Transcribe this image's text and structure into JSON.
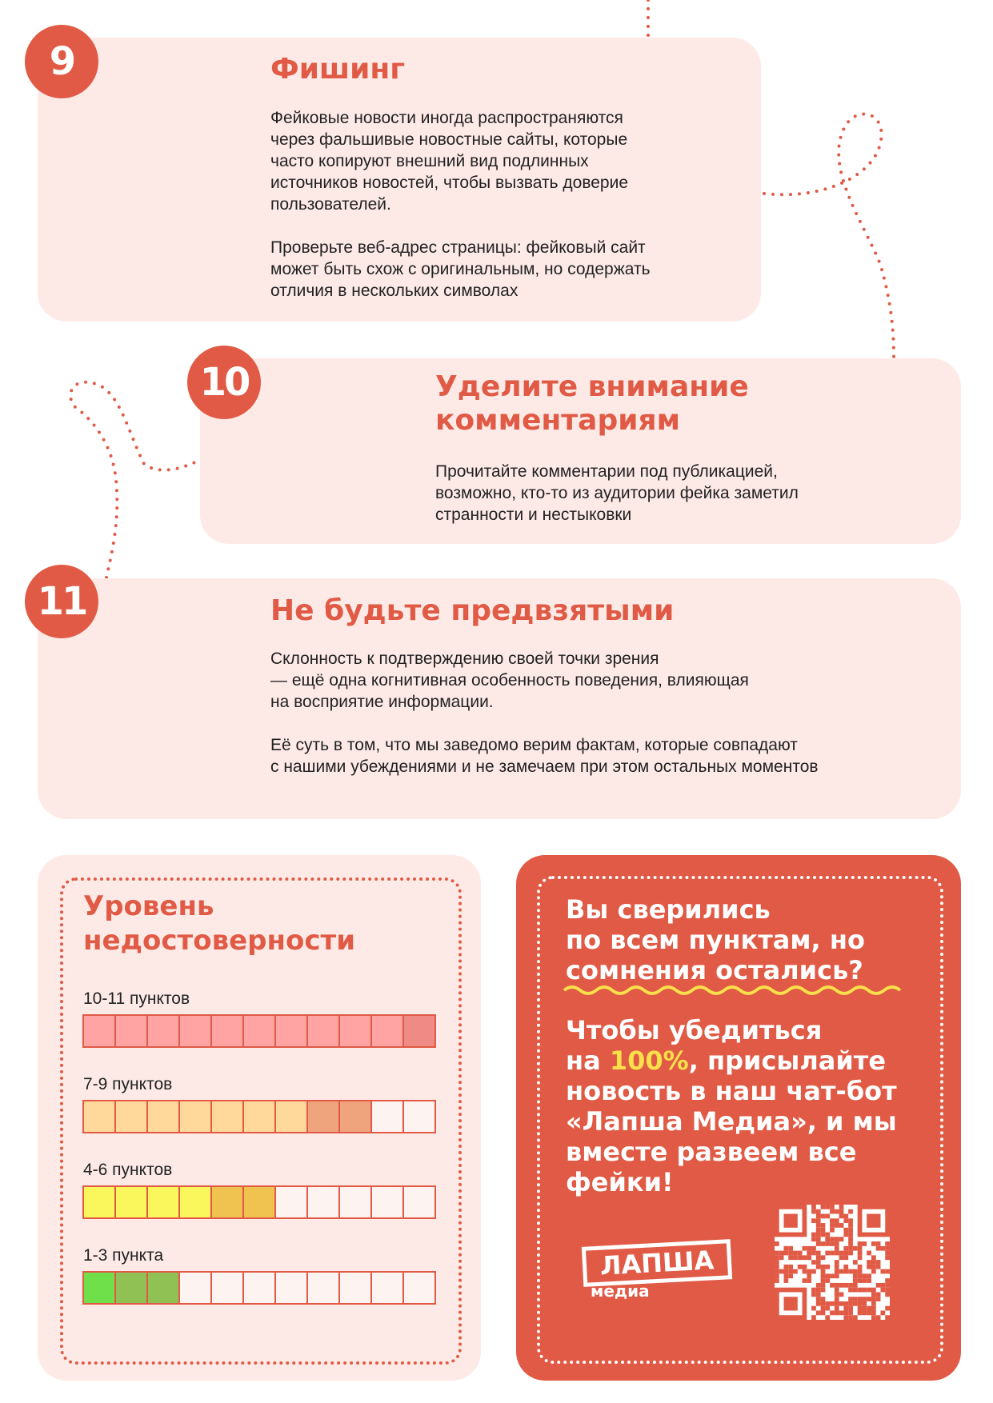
{
  "cards": [
    {
      "number": "9",
      "title": "Фишинг",
      "paragraphs": [
        [
          "Фейковые новости иногда распространяются",
          "через фальшивые новостные сайты, которые",
          "часто копируют внешний вид подлинных",
          "источников новостей, чтобы вызвать доверие",
          "пользователей."
        ],
        [
          "Проверьте веб-адрес страницы: фейковый сайт",
          "может быть схож с оригинальным, но содержать",
          "отличия в нескольких символах"
        ]
      ]
    },
    {
      "number": "10",
      "title": "Уделите внимание комментариям",
      "paragraphs": [
        [
          "Прочитайте комментарии под публикацией,",
          "возможно, кто-то из аудитории фейка заметил",
          "странности и нестыковки"
        ]
      ]
    },
    {
      "number": "11",
      "title": "Не будьте предвзятыми",
      "paragraphs": [
        [
          "Склонность к подтверждению своей точки зрения",
          "— ещё одна когнитивная особенность поведения, влияющая",
          "на восприятие информации."
        ],
        [
          "Её суть в том, что мы заведомо верим фактам, которые совпадают",
          "с нашими убеждениями и не замечаем при этом остальных моментов"
        ]
      ]
    }
  ],
  "level": {
    "title": [
      "Уровень",
      "недостоверности"
    ],
    "rows": [
      {
        "label": "10-11 пунктов",
        "cells": [
          "#ffa3a3",
          "#ffa3a3",
          "#ffa3a3",
          "#ffa3a3",
          "#ffa3a3",
          "#ffa3a3",
          "#ffa3a3",
          "#ffa3a3",
          "#ffa3a3",
          "#ffa3a3",
          "#f08a84"
        ]
      },
      {
        "label": "7-9 пунктов",
        "cells": [
          "#ffd99c",
          "#ffd99c",
          "#ffd99c",
          "#ffd99c",
          "#ffd99c",
          "#ffd99c",
          "#ffd99c",
          "#f0a47e",
          "#f0a47e",
          null,
          null
        ]
      },
      {
        "label": "4-6 пунктов",
        "cells": [
          "#f9f75c",
          "#f9f75c",
          "#f9f75c",
          "#f9f75c",
          "#f0c24f",
          "#f0c24f",
          null,
          null,
          null,
          null,
          null
        ]
      },
      {
        "label": "1-3 пункта",
        "cells": [
          "#6fe04a",
          "#8fc155",
          "#8fc155",
          null,
          null,
          null,
          null,
          null,
          null,
          null,
          null
        ]
      }
    ]
  },
  "cta": {
    "question": [
      "Вы сверились",
      "по всем пунктам, но",
      "сомнения остались?"
    ],
    "answer": [
      [
        "Чтобы убедиться"
      ],
      [
        "на ",
        "100%",
        ", присылайте"
      ],
      [
        "новость в наш чат-бот"
      ],
      [
        "«Лапша Медиа», и мы"
      ],
      [
        "вместе развеем все"
      ],
      [
        "фейки!"
      ]
    ]
  },
  "logo": {
    "name": "ЛАПША",
    "sub": "медиа"
  }
}
